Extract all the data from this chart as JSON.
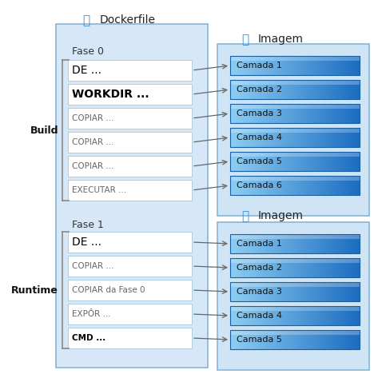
{
  "title": "Dockerfile",
  "fig_bg": "#ffffff",
  "fase0_label": "Fase 0",
  "fase1_label": "Fase 1",
  "build_label": "Build",
  "runtime_label": "Runtime",
  "imagem_label": "Imagem",
  "phase0_rows": [
    "DE ...",
    "WORKDIR ...",
    "COPIAR ...",
    "COPIAR ...",
    "COPIAR ...",
    "EXECUTAR ..."
  ],
  "phase0_bold": [
    false,
    true,
    false,
    false,
    false,
    false
  ],
  "phase0_large": [
    true,
    true,
    false,
    false,
    false,
    false
  ],
  "phase1_rows": [
    "DE ...",
    "COPIAR ...",
    "COPIAR da Fase 0",
    "EXPÔR ...",
    "CMD ..."
  ],
  "phase1_bold": [
    false,
    false,
    false,
    false,
    true
  ],
  "phase1_large": [
    true,
    false,
    false,
    false,
    false
  ],
  "camadas1": [
    "Camada 1",
    "Camada 2",
    "Camada 3",
    "Camada 4",
    "Camada 5",
    "Camada 6"
  ],
  "camadas2": [
    "Camada 1",
    "Camada 2",
    "Camada 3",
    "Camada 4",
    "Camada 5"
  ],
  "dockerfile_bg": "#d6e8f7",
  "dockerfile_edge": "#8ab4d4",
  "image_bg": "#cfe5f5",
  "image_edge": "#8ab4d4",
  "row_bg": "#ffffff",
  "row_edge": "#b0cce0",
  "camada_bg1": "#7ec8f0",
  "camada_bg2": "#1a6bbf",
  "camada_edge": "#1a6bbf",
  "camada_text": "#000000",
  "arrow_color": "#666666",
  "bracket_color": "#888888",
  "label_color": "#333333",
  "title_color": "#222222",
  "build_runtime_color": "#111111"
}
